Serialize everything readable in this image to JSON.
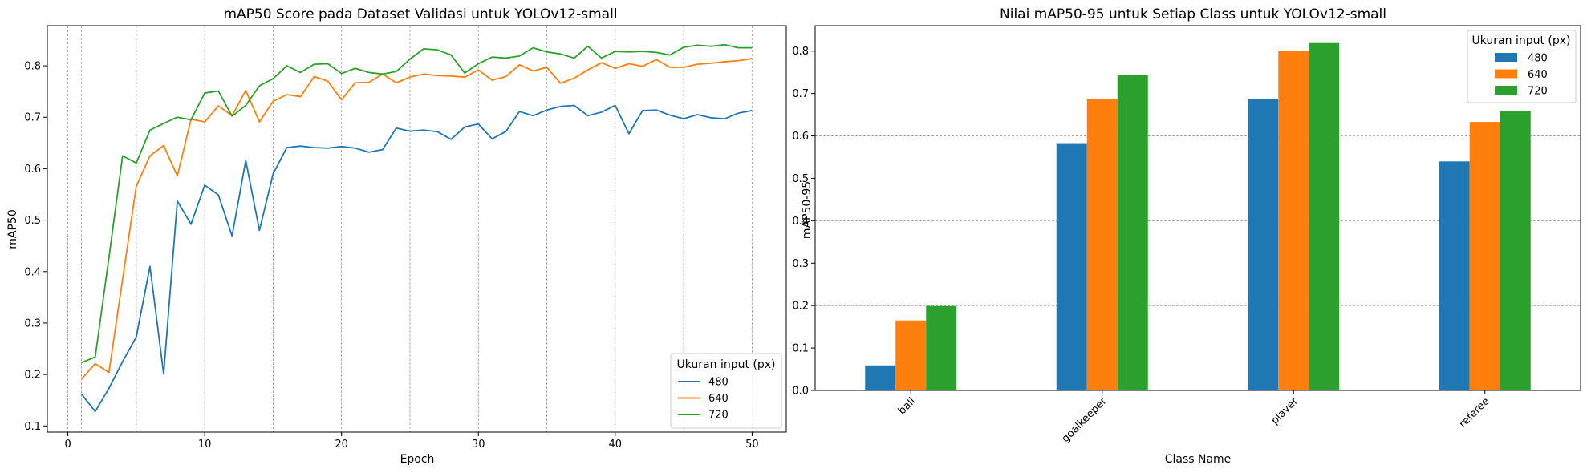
{
  "chart_data": [
    {
      "type": "line",
      "title": "mAP50 Score pada Dataset Validasi untuk YOLOv12-small",
      "xlabel": "Epoch",
      "ylabel": "mAP50",
      "xlim": [
        -1.5,
        52.5
      ],
      "ylim": [
        0.088,
        0.878
      ],
      "xticks": [
        0,
        10,
        20,
        30,
        40,
        50
      ],
      "yticks": [
        0.1,
        0.2,
        0.3,
        0.4,
        0.5,
        0.6,
        0.7,
        0.8
      ],
      "vertical_gridlines": [
        0,
        1,
        5,
        10,
        15,
        20,
        25,
        30,
        35,
        40,
        45,
        50
      ],
      "grid": "vertical dashed",
      "legend": {
        "title": "Ukuran input (px)",
        "placement": "lower-right"
      },
      "x": [
        1,
        2,
        3,
        4,
        5,
        6,
        7,
        8,
        9,
        10,
        11,
        12,
        13,
        14,
        15,
        16,
        17,
        18,
        19,
        20,
        21,
        22,
        23,
        24,
        25,
        26,
        27,
        28,
        29,
        30,
        31,
        32,
        33,
        34,
        35,
        36,
        37,
        38,
        39,
        40,
        41,
        42,
        43,
        44,
        45,
        46,
        47,
        48,
        49,
        50
      ],
      "series": [
        {
          "name": "480",
          "color": "#1f77b4",
          "values": [
            0.162,
            0.128,
            0.173,
            0.225,
            0.273,
            0.41,
            0.201,
            0.537,
            0.492,
            0.568,
            0.549,
            0.469,
            0.616,
            0.48,
            0.59,
            0.641,
            0.644,
            0.641,
            0.64,
            0.643,
            0.64,
            0.632,
            0.637,
            0.679,
            0.673,
            0.675,
            0.672,
            0.657,
            0.681,
            0.687,
            0.658,
            0.672,
            0.711,
            0.703,
            0.714,
            0.721,
            0.723,
            0.703,
            0.71,
            0.723,
            0.668,
            0.713,
            0.714,
            0.704,
            0.697,
            0.705,
            0.699,
            0.697,
            0.708,
            0.713
          ]
        },
        {
          "name": "640",
          "color": "#ff7f0e",
          "values": [
            0.191,
            0.221,
            0.204,
            0.385,
            0.566,
            0.625,
            0.645,
            0.586,
            0.696,
            0.691,
            0.722,
            0.703,
            0.752,
            0.691,
            0.731,
            0.744,
            0.74,
            0.779,
            0.77,
            0.734,
            0.767,
            0.768,
            0.784,
            0.767,
            0.778,
            0.784,
            0.781,
            0.78,
            0.778,
            0.792,
            0.772,
            0.779,
            0.802,
            0.79,
            0.797,
            0.766,
            0.776,
            0.792,
            0.806,
            0.795,
            0.804,
            0.799,
            0.812,
            0.797,
            0.797,
            0.803,
            0.805,
            0.808,
            0.81,
            0.814
          ]
        },
        {
          "name": "720",
          "color": "#2ca02c",
          "values": [
            0.223,
            0.234,
            0.427,
            0.625,
            0.611,
            0.675,
            0.688,
            0.7,
            0.695,
            0.747,
            0.751,
            0.702,
            0.723,
            0.761,
            0.775,
            0.8,
            0.787,
            0.803,
            0.804,
            0.785,
            0.795,
            0.787,
            0.784,
            0.789,
            0.813,
            0.833,
            0.831,
            0.821,
            0.786,
            0.804,
            0.817,
            0.815,
            0.819,
            0.835,
            0.827,
            0.823,
            0.815,
            0.838,
            0.815,
            0.828,
            0.827,
            0.828,
            0.826,
            0.821,
            0.836,
            0.84,
            0.838,
            0.841,
            0.835,
            0.835
          ]
        }
      ]
    },
    {
      "type": "bar",
      "title": "Nilai mAP50-95 untuk Setiap Class untuk YOLOv12-small",
      "xlabel": "Class Name",
      "ylabel": "mAP50-95",
      "categories": [
        "ball",
        "goalkeeper",
        "player",
        "referee"
      ],
      "ylim": [
        0,
        0.86
      ],
      "yticks": [
        0.0,
        0.1,
        0.2,
        0.3,
        0.4,
        0.5,
        0.6,
        0.7,
        0.8
      ],
      "horizontal_gridlines": [
        0.2,
        0.4,
        0.6
      ],
      "grid": "horizontal dashed",
      "legend": {
        "title": "Ukuran input (px)",
        "placement": "upper-right"
      },
      "series": [
        {
          "name": "480",
          "color": "#1f77b4",
          "values": [
            0.059,
            0.583,
            0.688,
            0.54
          ]
        },
        {
          "name": "640",
          "color": "#ff7f0e",
          "values": [
            0.165,
            0.688,
            0.801,
            0.633
          ]
        },
        {
          "name": "720",
          "color": "#2ca02c",
          "values": [
            0.199,
            0.743,
            0.819,
            0.659
          ]
        }
      ]
    }
  ]
}
